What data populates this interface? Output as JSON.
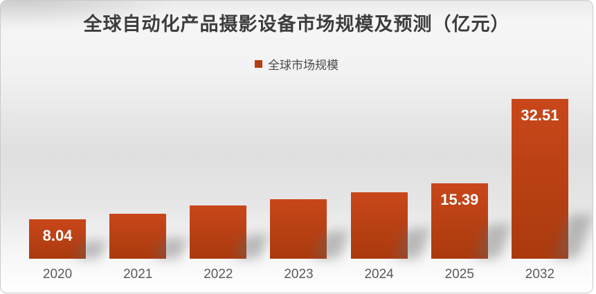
{
  "chart_data": {
    "type": "bar",
    "title": "全球自动化产品摄影设备市场规模及预测（亿元）",
    "legend": [
      "全球市场规模"
    ],
    "legend_position": "top-center",
    "categories": [
      "2020",
      "2021",
      "2022",
      "2023",
      "2024",
      "2025",
      "2032"
    ],
    "series": [
      {
        "name": "全球市场规模",
        "values": [
          8.04,
          9.2,
          10.8,
          12.1,
          13.5,
          15.39,
          32.51
        ],
        "data_labels": [
          "8.04",
          "",
          "",
          "",
          "",
          "15.39",
          "32.51"
        ]
      }
    ],
    "xlabel": "",
    "ylabel": "",
    "ylim": [
      0,
      32.51
    ],
    "grid": false,
    "note": "unlabeled bar values estimated from bar heights"
  },
  "colors": {
    "bar_top": "#c8471a",
    "bar_bottom": "#a93a0e",
    "data_label": "#ffffff",
    "axis_text": "#5a5a5a",
    "title_text": "#3d3d3d",
    "legend_text": "#4a4a4a",
    "legend_swatch": "#b23d0e"
  }
}
